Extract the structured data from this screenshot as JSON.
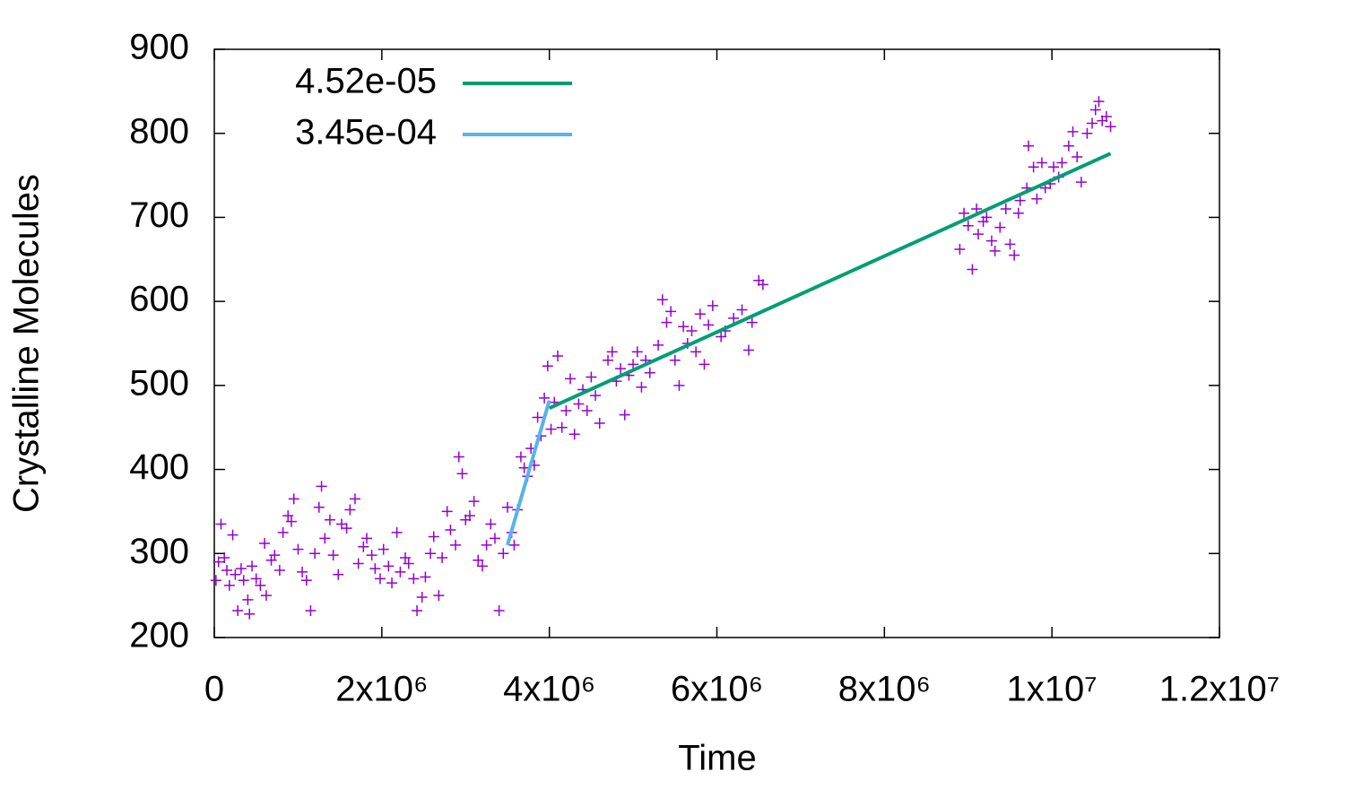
{
  "chart_data": {
    "type": "scatter",
    "x_label": "Time",
    "y_label": "Crystalline Molecules",
    "xlim": [
      0,
      12000000
    ],
    "ylim": [
      200,
      900
    ],
    "xticks": [
      0,
      {
        "value": 2000000,
        "label": "2x10⁶"
      },
      {
        "value": 4000000,
        "label": "4x10⁶"
      },
      {
        "value": 6000000,
        "label": "6x10⁶"
      },
      {
        "value": 8000000,
        "label": "8x10⁶"
      },
      {
        "value": 10000000,
        "label": "1x10⁷"
      },
      {
        "value": 12000000,
        "label": "1.2x10⁷"
      }
    ],
    "yticks": [
      200,
      300,
      400,
      500,
      600,
      700,
      800,
      900
    ],
    "legend": "top-left",
    "series": [
      {
        "type": "scatter",
        "marker": "+",
        "color": "#9400d3",
        "x": [
          20000,
          50000,
          80000,
          120000,
          150000,
          180000,
          220000,
          250000,
          280000,
          320000,
          350000,
          400000,
          420000,
          450000,
          500000,
          550000,
          600000,
          620000,
          680000,
          720000,
          780000,
          820000,
          880000,
          920000,
          950000,
          1000000,
          1050000,
          1100000,
          1150000,
          1200000,
          1250000,
          1280000,
          1320000,
          1380000,
          1420000,
          1480000,
          1520000,
          1580000,
          1620000,
          1680000,
          1720000,
          1780000,
          1820000,
          1880000,
          1920000,
          1980000,
          2020000,
          2080000,
          2120000,
          2180000,
          2220000,
          2280000,
          2320000,
          2380000,
          2420000,
          2480000,
          2520000,
          2580000,
          2620000,
          2680000,
          2720000,
          2780000,
          2820000,
          2880000,
          2920000,
          2960000,
          3000000,
          3050000,
          3100000,
          3150000,
          3200000,
          3250000,
          3300000,
          3350000,
          3400000,
          3450000,
          3500000,
          3550000,
          3580000,
          3620000,
          3660000,
          3700000,
          3740000,
          3780000,
          3820000,
          3860000,
          3900000,
          3940000,
          3980000,
          4020000,
          4060000,
          4100000,
          4150000,
          4200000,
          4250000,
          4300000,
          4350000,
          4400000,
          4450000,
          4500000,
          4550000,
          4600000,
          4700000,
          4750000,
          4800000,
          4850000,
          4900000,
          4950000,
          5000000,
          5050000,
          5100000,
          5150000,
          5200000,
          5300000,
          5350000,
          5400000,
          5450000,
          5500000,
          5550000,
          5600000,
          5650000,
          5700000,
          5750000,
          5800000,
          5850000,
          5900000,
          5950000,
          6050000,
          6100000,
          6200000,
          6300000,
          6380000,
          6420000,
          6500000,
          6550000,
          8900000,
          8950000,
          9000000,
          9050000,
          9100000,
          9120000,
          9180000,
          9220000,
          9280000,
          9320000,
          9380000,
          9450000,
          9500000,
          9550000,
          9600000,
          9620000,
          9700000,
          9720000,
          9780000,
          9820000,
          9880000,
          9920000,
          9980000,
          10020000,
          10080000,
          10120000,
          10200000,
          10250000,
          10300000,
          10350000,
          10420000,
          10480000,
          10520000,
          10560000,
          10600000,
          10650000,
          10700000
        ],
        "values": [
          268,
          290,
          335,
          295,
          280,
          262,
          322,
          275,
          232,
          282,
          268,
          245,
          228,
          285,
          270,
          262,
          312,
          250,
          292,
          298,
          280,
          325,
          345,
          338,
          365,
          305,
          278,
          268,
          232,
          300,
          355,
          380,
          318,
          340,
          298,
          275,
          335,
          330,
          352,
          365,
          288,
          308,
          318,
          298,
          282,
          270,
          305,
          285,
          265,
          325,
          278,
          295,
          288,
          270,
          232,
          248,
          272,
          300,
          320,
          250,
          295,
          350,
          328,
          310,
          415,
          395,
          340,
          345,
          362,
          292,
          285,
          310,
          335,
          318,
          232,
          300,
          355,
          325,
          310,
          352,
          415,
          402,
          392,
          425,
          405,
          462,
          440,
          485,
          523,
          448,
          480,
          535,
          450,
          470,
          508,
          442,
          478,
          495,
          470,
          510,
          488,
          455,
          530,
          540,
          505,
          520,
          465,
          512,
          525,
          540,
          498,
          530,
          515,
          548,
          602,
          575,
          588,
          530,
          500,
          570,
          550,
          565,
          540,
          585,
          525,
          572,
          595,
          558,
          565,
          580,
          590,
          542,
          575,
          625,
          620,
          662,
          705,
          690,
          638,
          710,
          680,
          695,
          700,
          672,
          660,
          688,
          710,
          668,
          655,
          705,
          720,
          735,
          785,
          760,
          722,
          765,
          735,
          740,
          760,
          748,
          765,
          785,
          802,
          772,
          742,
          800,
          812,
          828,
          838,
          815,
          820,
          808
        ]
      },
      {
        "type": "line",
        "name": "4.52e-05",
        "color": "#009e73",
        "x": [
          4000000,
          10700000
        ],
        "values": [
          473,
          776
        ]
      },
      {
        "type": "line",
        "name": "3.45e-04",
        "color": "#56b4e9",
        "x": [
          3500000,
          4000000
        ],
        "values": [
          310,
          482
        ]
      }
    ]
  }
}
